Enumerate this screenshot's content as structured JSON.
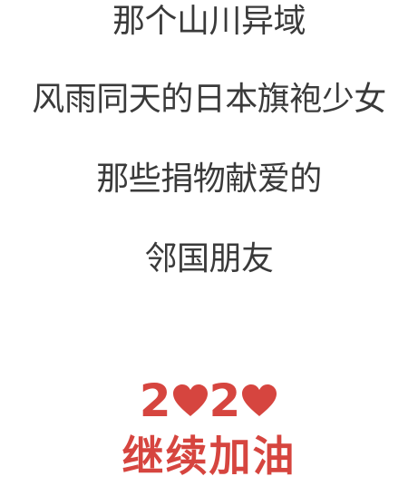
{
  "poem": {
    "lines": [
      "那个山川异域",
      "风雨同天的日本旗袍少女",
      "那些捐物献爱的",
      "邻国朋友"
    ]
  },
  "slogan": {
    "year_digits": [
      "2",
      "2"
    ],
    "heart_icon": "heart-icon",
    "heart_color": "#d6453f",
    "text": "继续加油"
  }
}
